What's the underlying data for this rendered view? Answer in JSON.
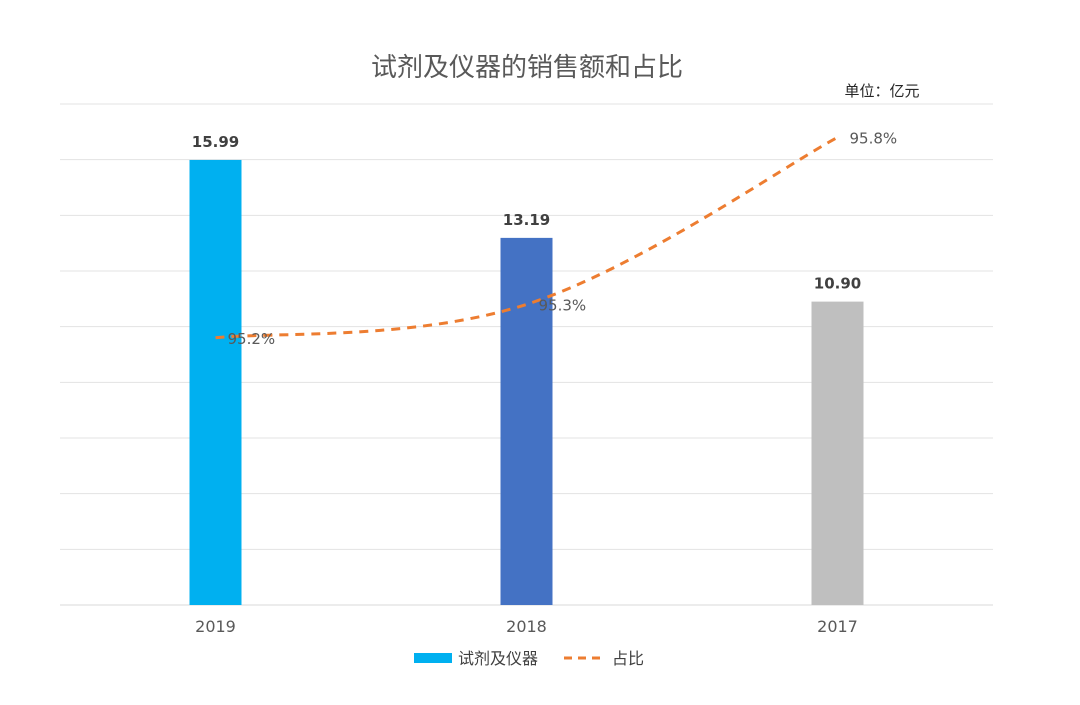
{
  "chart_data": {
    "type": "bar",
    "title": "试剂及仪器的销售额和占比",
    "unit_label": "单位：亿元",
    "categories": [
      "2019",
      "2018",
      "2017"
    ],
    "series": [
      {
        "name": "试剂及仪器",
        "type": "bar",
        "values": [
          15.99,
          13.19,
          10.9
        ],
        "value_labels": [
          "15.99",
          "13.19",
          "10.90"
        ],
        "colors": [
          "#00B0F0",
          "#4472C4",
          "#BFBFBF"
        ]
      },
      {
        "name": "占比",
        "type": "line",
        "style": "dashed",
        "values": [
          95.2,
          95.3,
          95.8
        ],
        "value_labels": [
          "95.2%",
          "95.3%",
          "95.8%"
        ],
        "color": "#ED7D31"
      }
    ],
    "ylim": [
      0,
      18
    ],
    "line_ylim": [
      94.4,
      95.9
    ],
    "grid": true,
    "legend": "bottom"
  }
}
